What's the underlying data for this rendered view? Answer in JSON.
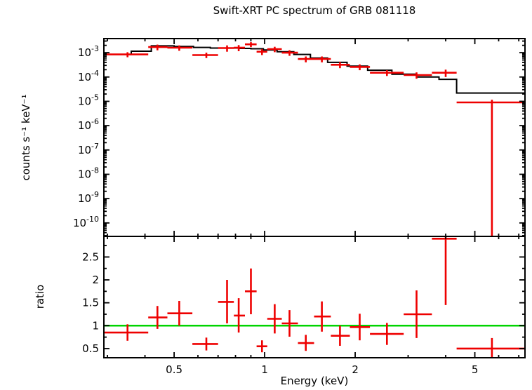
{
  "title": "Swift-XRT PC spectrum of GRB 081118",
  "chart_data": {
    "type": "line",
    "title": "Swift-XRT PC spectrum of GRB 081118",
    "xlabel": "Energy (keV)",
    "xscale": "log",
    "xlim": [
      0.292,
      7.34
    ],
    "x_ticks": [
      0.5,
      1,
      2,
      5
    ],
    "x_tick_labels": [
      "0.5",
      "1",
      "2",
      "5"
    ],
    "x_minor_ticks": [
      0.3,
      0.4,
      0.6,
      0.7,
      0.8,
      0.9,
      3,
      4,
      6,
      7
    ],
    "colors": {
      "data": "#ee0000",
      "model": "#000000",
      "reference": "#00d400",
      "frame": "#000000"
    },
    "panels": [
      {
        "ylabel": "counts s⁻¹ keV⁻¹",
        "yscale": "log",
        "ylim": [
          2.8e-11,
          0.0038
        ],
        "y_tick_exponents": [
          -3,
          -4,
          -5,
          -6,
          -7,
          -8,
          -9,
          -10
        ],
        "model_steps": [
          [
            0.292,
            0.36,
            0.00085
          ],
          [
            0.36,
            0.42,
            0.00115
          ],
          [
            0.42,
            0.5,
            0.0019
          ],
          [
            0.5,
            0.58,
            0.0018
          ],
          [
            0.58,
            0.66,
            0.00165
          ],
          [
            0.66,
            0.74,
            0.00155
          ],
          [
            0.74,
            0.82,
            0.00155
          ],
          [
            0.82,
            0.9,
            0.0015
          ],
          [
            0.9,
            0.99,
            0.00145
          ],
          [
            0.99,
            1.1,
            0.0013
          ],
          [
            1.1,
            1.25,
            0.0011
          ],
          [
            1.25,
            1.42,
            0.00085
          ],
          [
            1.42,
            1.62,
            0.0006
          ],
          [
            1.62,
            1.88,
            0.0004
          ],
          [
            1.88,
            2.2,
            0.00028
          ],
          [
            2.2,
            2.65,
            0.00019
          ],
          [
            2.65,
            3.2,
            0.00013
          ],
          [
            3.2,
            3.8,
            0.0001
          ],
          [
            3.8,
            4.35,
            8e-05
          ],
          [
            4.35,
            7.34,
            2.2e-05
          ]
        ],
        "points": [
          {
            "e": 0.35,
            "elo": 0.292,
            "ehi": 0.41,
            "y": 0.00085,
            "ylo": 0.00065,
            "yhi": 0.00105
          },
          {
            "e": 0.44,
            "elo": 0.41,
            "ehi": 0.475,
            "y": 0.0017,
            "ylo": 0.00125,
            "yhi": 0.00215
          },
          {
            "e": 0.52,
            "elo": 0.475,
            "ehi": 0.575,
            "y": 0.0016,
            "ylo": 0.0012,
            "yhi": 0.002
          },
          {
            "e": 0.64,
            "elo": 0.575,
            "ehi": 0.7,
            "y": 0.0008,
            "ylo": 0.0006,
            "yhi": 0.001
          },
          {
            "e": 0.75,
            "elo": 0.7,
            "ehi": 0.79,
            "y": 0.00155,
            "ylo": 0.0011,
            "yhi": 0.002
          },
          {
            "e": 0.82,
            "elo": 0.79,
            "ehi": 0.86,
            "y": 0.0016,
            "ylo": 0.00115,
            "yhi": 0.00205
          },
          {
            "e": 0.9,
            "elo": 0.86,
            "ehi": 0.94,
            "y": 0.0022,
            "ylo": 0.0017,
            "yhi": 0.0027
          },
          {
            "e": 0.98,
            "elo": 0.94,
            "ehi": 1.02,
            "y": 0.0011,
            "ylo": 0.0008,
            "yhi": 0.0014
          },
          {
            "e": 1.08,
            "elo": 1.02,
            "ehi": 1.14,
            "y": 0.0014,
            "ylo": 0.00105,
            "yhi": 0.00175
          },
          {
            "e": 1.21,
            "elo": 1.14,
            "ehi": 1.29,
            "y": 0.001,
            "ylo": 0.00074,
            "yhi": 0.00126
          },
          {
            "e": 1.37,
            "elo": 1.29,
            "ehi": 1.46,
            "y": 0.00055,
            "ylo": 0.0004,
            "yhi": 0.0007
          },
          {
            "e": 1.55,
            "elo": 1.46,
            "ehi": 1.66,
            "y": 0.00055,
            "ylo": 0.0004,
            "yhi": 0.0007
          },
          {
            "e": 1.78,
            "elo": 1.66,
            "ehi": 1.92,
            "y": 0.00032,
            "ylo": 0.00023,
            "yhi": 0.00041
          },
          {
            "e": 2.07,
            "elo": 1.92,
            "ehi": 2.24,
            "y": 0.00026,
            "ylo": 0.00019,
            "yhi": 0.00033
          },
          {
            "e": 2.55,
            "elo": 2.24,
            "ehi": 2.9,
            "y": 0.00015,
            "ylo": 0.00011,
            "yhi": 0.00019
          },
          {
            "e": 3.2,
            "elo": 2.9,
            "ehi": 3.6,
            "y": 0.00012,
            "ylo": 8.5e-05,
            "yhi": 0.000155
          },
          {
            "e": 4.0,
            "elo": 3.6,
            "ehi": 4.35,
            "y": 0.00015,
            "ylo": 0.0001,
            "yhi": 0.0002
          },
          {
            "e": 5.7,
            "elo": 4.35,
            "ehi": 7.34,
            "y": 9e-06,
            "ylo": 1e-11,
            "yhi": 1.15e-05
          }
        ]
      },
      {
        "ylabel": "ratio",
        "yscale": "linear",
        "ylim": [
          0.3,
          2.95
        ],
        "y_ticks": [
          0.5,
          1,
          1.5,
          2,
          2.5
        ],
        "y_tick_labels": [
          "0.5",
          "1",
          "1.5",
          "2",
          "2.5"
        ],
        "y_minor_ticks": [
          0.75,
          1.25,
          1.75,
          2.25,
          2.75
        ],
        "reference_line": 1,
        "points": [
          {
            "e": 0.35,
            "elo": 0.292,
            "ehi": 0.41,
            "y": 0.85,
            "ylo": 0.67,
            "yhi": 1.03
          },
          {
            "e": 0.44,
            "elo": 0.41,
            "ehi": 0.475,
            "y": 1.18,
            "ylo": 0.93,
            "yhi": 1.43
          },
          {
            "e": 0.52,
            "elo": 0.475,
            "ehi": 0.575,
            "y": 1.27,
            "ylo": 1.0,
            "yhi": 1.54
          },
          {
            "e": 0.64,
            "elo": 0.575,
            "ehi": 0.7,
            "y": 0.6,
            "ylo": 0.46,
            "yhi": 0.74
          },
          {
            "e": 0.75,
            "elo": 0.7,
            "ehi": 0.79,
            "y": 1.52,
            "ylo": 1.05,
            "yhi": 2.0
          },
          {
            "e": 0.82,
            "elo": 0.79,
            "ehi": 0.86,
            "y": 1.22,
            "ylo": 0.85,
            "yhi": 1.6
          },
          {
            "e": 0.9,
            "elo": 0.86,
            "ehi": 0.94,
            "y": 1.75,
            "ylo": 1.25,
            "yhi": 2.25
          },
          {
            "e": 0.98,
            "elo": 0.94,
            "ehi": 1.02,
            "y": 0.55,
            "ylo": 0.42,
            "yhi": 0.68
          },
          {
            "e": 1.08,
            "elo": 1.02,
            "ehi": 1.14,
            "y": 1.15,
            "ylo": 0.83,
            "yhi": 1.47
          },
          {
            "e": 1.21,
            "elo": 1.14,
            "ehi": 1.29,
            "y": 1.05,
            "ylo": 0.76,
            "yhi": 1.34
          },
          {
            "e": 1.37,
            "elo": 1.29,
            "ehi": 1.46,
            "y": 0.62,
            "ylo": 0.45,
            "yhi": 0.8
          },
          {
            "e": 1.55,
            "elo": 1.46,
            "ehi": 1.66,
            "y": 1.2,
            "ylo": 0.87,
            "yhi": 1.53
          },
          {
            "e": 1.78,
            "elo": 1.66,
            "ehi": 1.92,
            "y": 0.78,
            "ylo": 0.56,
            "yhi": 1.0
          },
          {
            "e": 2.07,
            "elo": 1.92,
            "ehi": 2.24,
            "y": 0.97,
            "ylo": 0.68,
            "yhi": 1.26
          },
          {
            "e": 2.55,
            "elo": 2.24,
            "ehi": 2.9,
            "y": 0.82,
            "ylo": 0.58,
            "yhi": 1.06
          },
          {
            "e": 3.2,
            "elo": 2.9,
            "ehi": 3.6,
            "y": 1.25,
            "ylo": 0.73,
            "yhi": 1.77
          },
          {
            "e": 4.0,
            "elo": 3.6,
            "ehi": 4.35,
            "y": 2.9,
            "ylo": 1.45,
            "yhi": 3.5
          },
          {
            "e": 5.7,
            "elo": 4.35,
            "ehi": 7.34,
            "y": 0.5,
            "ylo": 0.05,
            "yhi": 0.73
          }
        ]
      }
    ]
  }
}
